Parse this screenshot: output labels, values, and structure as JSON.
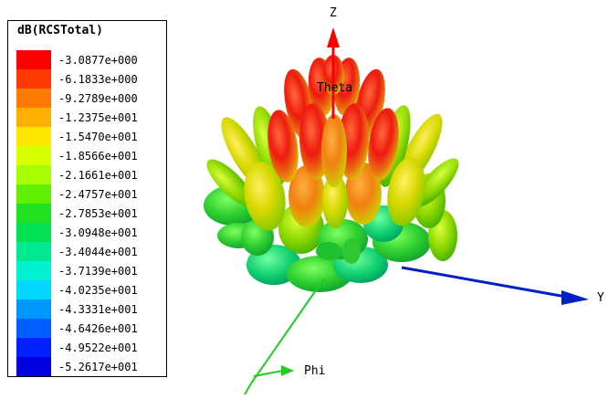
{
  "legend": {
    "title": "dB(RCSTotal)",
    "entries": [
      {
        "label": "-3.0877e+000",
        "color": "#ff0000"
      },
      {
        "label": "-6.1833e+000",
        "color": "#ff3a00"
      },
      {
        "label": "-9.2789e+000",
        "color": "#ff7a00"
      },
      {
        "label": "-1.2375e+001",
        "color": "#ffb000"
      },
      {
        "label": "-1.5470e+001",
        "color": "#ffe600"
      },
      {
        "label": "-1.8566e+001",
        "color": "#d8ff00"
      },
      {
        "label": "-2.1661e+001",
        "color": "#a6ff00"
      },
      {
        "label": "-2.4757e+001",
        "color": "#60f000"
      },
      {
        "label": "-2.7853e+001",
        "color": "#20e020"
      },
      {
        "label": "-3.0948e+001",
        "color": "#00e050"
      },
      {
        "label": "-3.4044e+001",
        "color": "#00e890"
      },
      {
        "label": "-3.7139e+001",
        "color": "#00f0d0"
      },
      {
        "label": "-4.0235e+001",
        "color": "#00d8ff"
      },
      {
        "label": "-4.3331e+001",
        "color": "#0098ff"
      },
      {
        "label": "-4.6426e+001",
        "color": "#0060ff"
      },
      {
        "label": "-4.9522e+001",
        "color": "#0020ff"
      },
      {
        "label": "-5.2617e+001",
        "color": "#0000e0"
      }
    ]
  },
  "axes": {
    "z_label": "Z",
    "y_label": "Y",
    "phi_label": "Phi",
    "theta_label": "Theta"
  },
  "colors": {
    "z_axis": "#ff0000",
    "y_axis": "#0020c8",
    "phi_axis": "#22cc22"
  }
}
